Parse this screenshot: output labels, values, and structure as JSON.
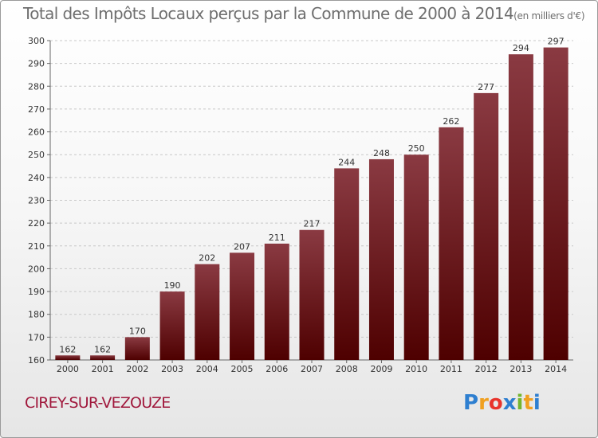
{
  "title": "Total des Impôts Locaux perçus par la Commune de 2000 à 2014",
  "title_unit": "(en milliers d'€)",
  "commune": "CIREY-SUR-VEZOUZE",
  "logo": {
    "text": "Proxiti",
    "letters": [
      "P",
      "r",
      "o",
      "x",
      "i",
      "t",
      "i"
    ],
    "colors": [
      "#2e7fd0",
      "#f0a020",
      "#e8342c",
      "#2e7fd0",
      "#74b62e",
      "#f0a020",
      "#2e7fd0"
    ]
  },
  "colors": {
    "bar_top": "#8a3a42",
    "bar_bottom": "#4e0000",
    "title": "#6e6e6e",
    "commune": "#a0183c"
  },
  "chart_data": {
    "type": "bar",
    "title": "Total des Impôts Locaux perçus par la Commune de 2000 à 2014",
    "xlabel": "",
    "ylabel": "en milliers d'€",
    "categories": [
      "2000",
      "2001",
      "2002",
      "2003",
      "2004",
      "2005",
      "2006",
      "2007",
      "2008",
      "2009",
      "2010",
      "2011",
      "2012",
      "2013",
      "2014"
    ],
    "values": [
      162,
      162,
      170,
      190,
      202,
      207,
      211,
      217,
      244,
      248,
      250,
      262,
      277,
      294,
      297
    ],
    "ylim": [
      160,
      300
    ],
    "yticks": [
      160,
      170,
      180,
      190,
      200,
      210,
      220,
      230,
      240,
      250,
      260,
      270,
      280,
      290,
      300
    ],
    "grid": true
  }
}
